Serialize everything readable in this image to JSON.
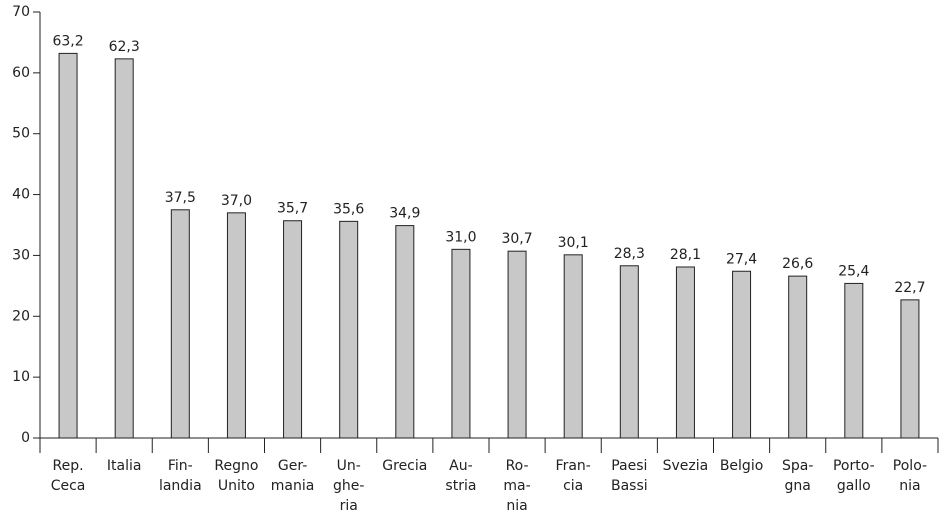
{
  "chart_data": {
    "type": "bar",
    "categories": [
      "Rep.\nCeca",
      "Italia",
      "Fin-\nlandia",
      "Regno\nUnito",
      "Ger-\nmania",
      "Un-\nghe-\nria",
      "Grecia",
      "Au-\nstria",
      "Ro-\nma-\nnia",
      "Fran-\ncia",
      "Paesi\nBassi",
      "Svezia",
      "Belgio",
      "Spa-\ngna",
      "Porto-\ngallo",
      "Polo-\nnia"
    ],
    "values": [
      63.2,
      62.3,
      37.5,
      37.0,
      35.7,
      35.6,
      34.9,
      31.0,
      30.7,
      30.1,
      28.3,
      28.1,
      27.4,
      26.6,
      25.4,
      22.7
    ],
    "value_labels": [
      "63,2",
      "62,3",
      "37,5",
      "37,0",
      "35,7",
      "35,6",
      "34,9",
      "31,0",
      "30,7",
      "30,1",
      "28,3",
      "28,1",
      "27,4",
      "26,6",
      "25,4",
      "22,7"
    ],
    "color": "#c8c8c8",
    "ylim": [
      0,
      70
    ],
    "yticks": [
      0,
      10,
      20,
      30,
      40,
      50,
      60,
      70
    ],
    "grid": false
  }
}
